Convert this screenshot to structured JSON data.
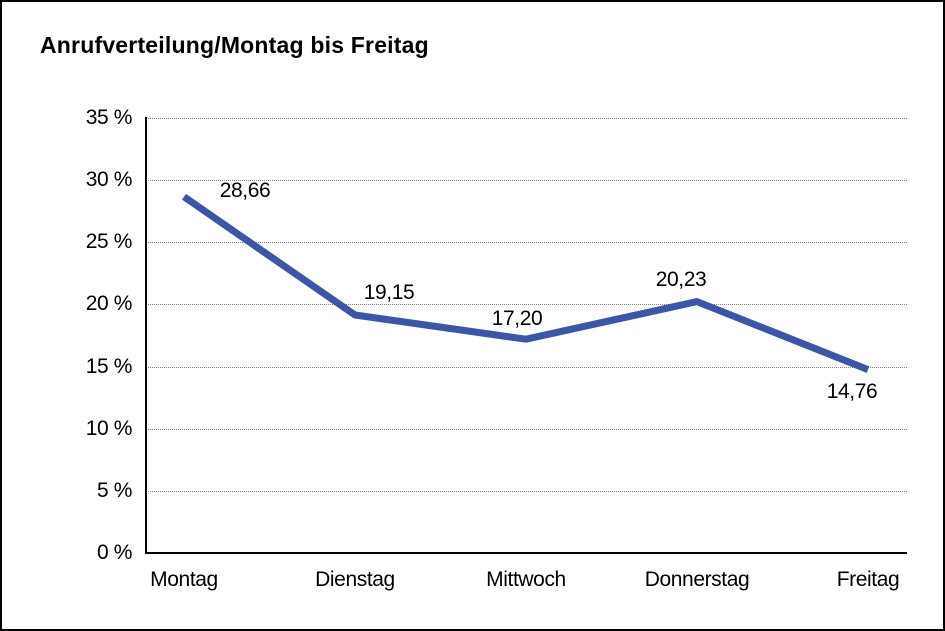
{
  "title": "Anrufverteilung/Montag bis Freitag",
  "chart_data": {
    "type": "line",
    "title": "Anrufverteilung/Montag bis Freitag",
    "categories": [
      "Montag",
      "Dienstag",
      "Mittwoch",
      "Donnerstag",
      "Freitag"
    ],
    "series": [
      {
        "name": "Anrufverteilung",
        "values": [
          28.66,
          19.15,
          17.2,
          20.23,
          14.76
        ],
        "value_labels": [
          "28,66",
          "19,15",
          "17,20",
          "20,23",
          "14,76"
        ]
      }
    ],
    "xlabel": "",
    "ylabel": "",
    "ylim": [
      0,
      35
    ],
    "ytick_step": 5,
    "ytick_labels": [
      "0 %",
      "5 %",
      "10 %",
      "15 %",
      "20 %",
      "25 %",
      "30 %",
      "35 %"
    ],
    "grid": "horizontal-dotted",
    "legend": "none",
    "line_color": "#3A57A7",
    "gridline_color": "#7f7f7f",
    "axis_color": "#000000",
    "background_color": "#ffffff"
  }
}
